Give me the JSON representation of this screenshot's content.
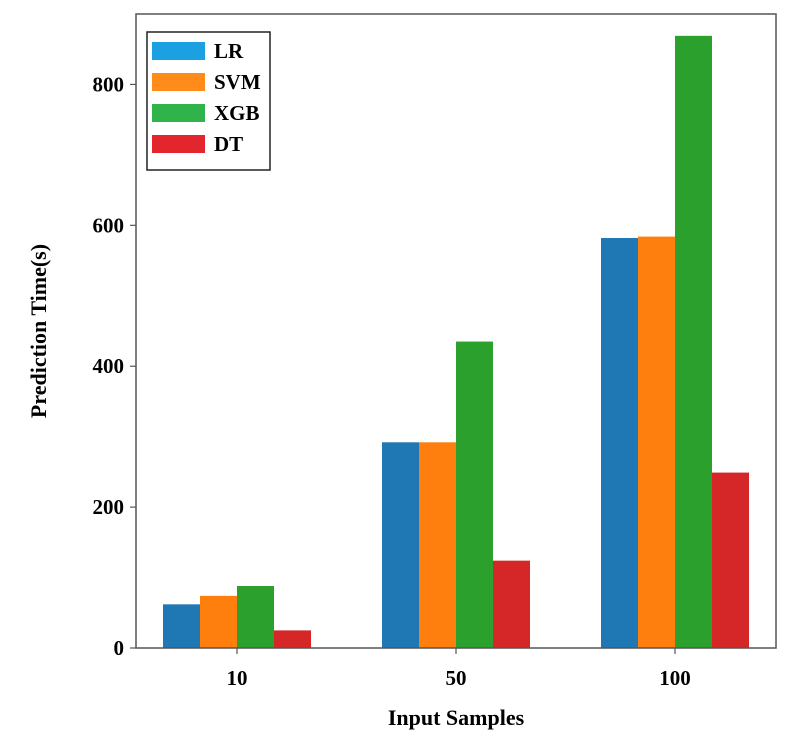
{
  "chart_data": {
    "type": "bar",
    "categories": [
      "10",
      "50",
      "100"
    ],
    "series": [
      {
        "name": "LR",
        "color": "#1f77b4",
        "values": [
          62,
          292,
          582
        ]
      },
      {
        "name": "SVM",
        "color": "#ff7f0e",
        "values": [
          74,
          292,
          584
        ]
      },
      {
        "name": "XGB",
        "color": "#2ca02c",
        "values": [
          88,
          435,
          869
        ]
      },
      {
        "name": "DT",
        "color": "#d62728",
        "values": [
          25,
          124,
          249
        ]
      }
    ],
    "xlabel": "Input Samples",
    "ylabel": "Prediction Time(s)",
    "ylim": [
      0,
      900
    ],
    "yticks": [
      0,
      200,
      400,
      600,
      800
    ],
    "legend_position": "top-left",
    "legend_swatch_colors": [
      "#1ba1e2",
      "#ff8c1a",
      "#2fb34a",
      "#e3262e"
    ],
    "grid": false
  }
}
